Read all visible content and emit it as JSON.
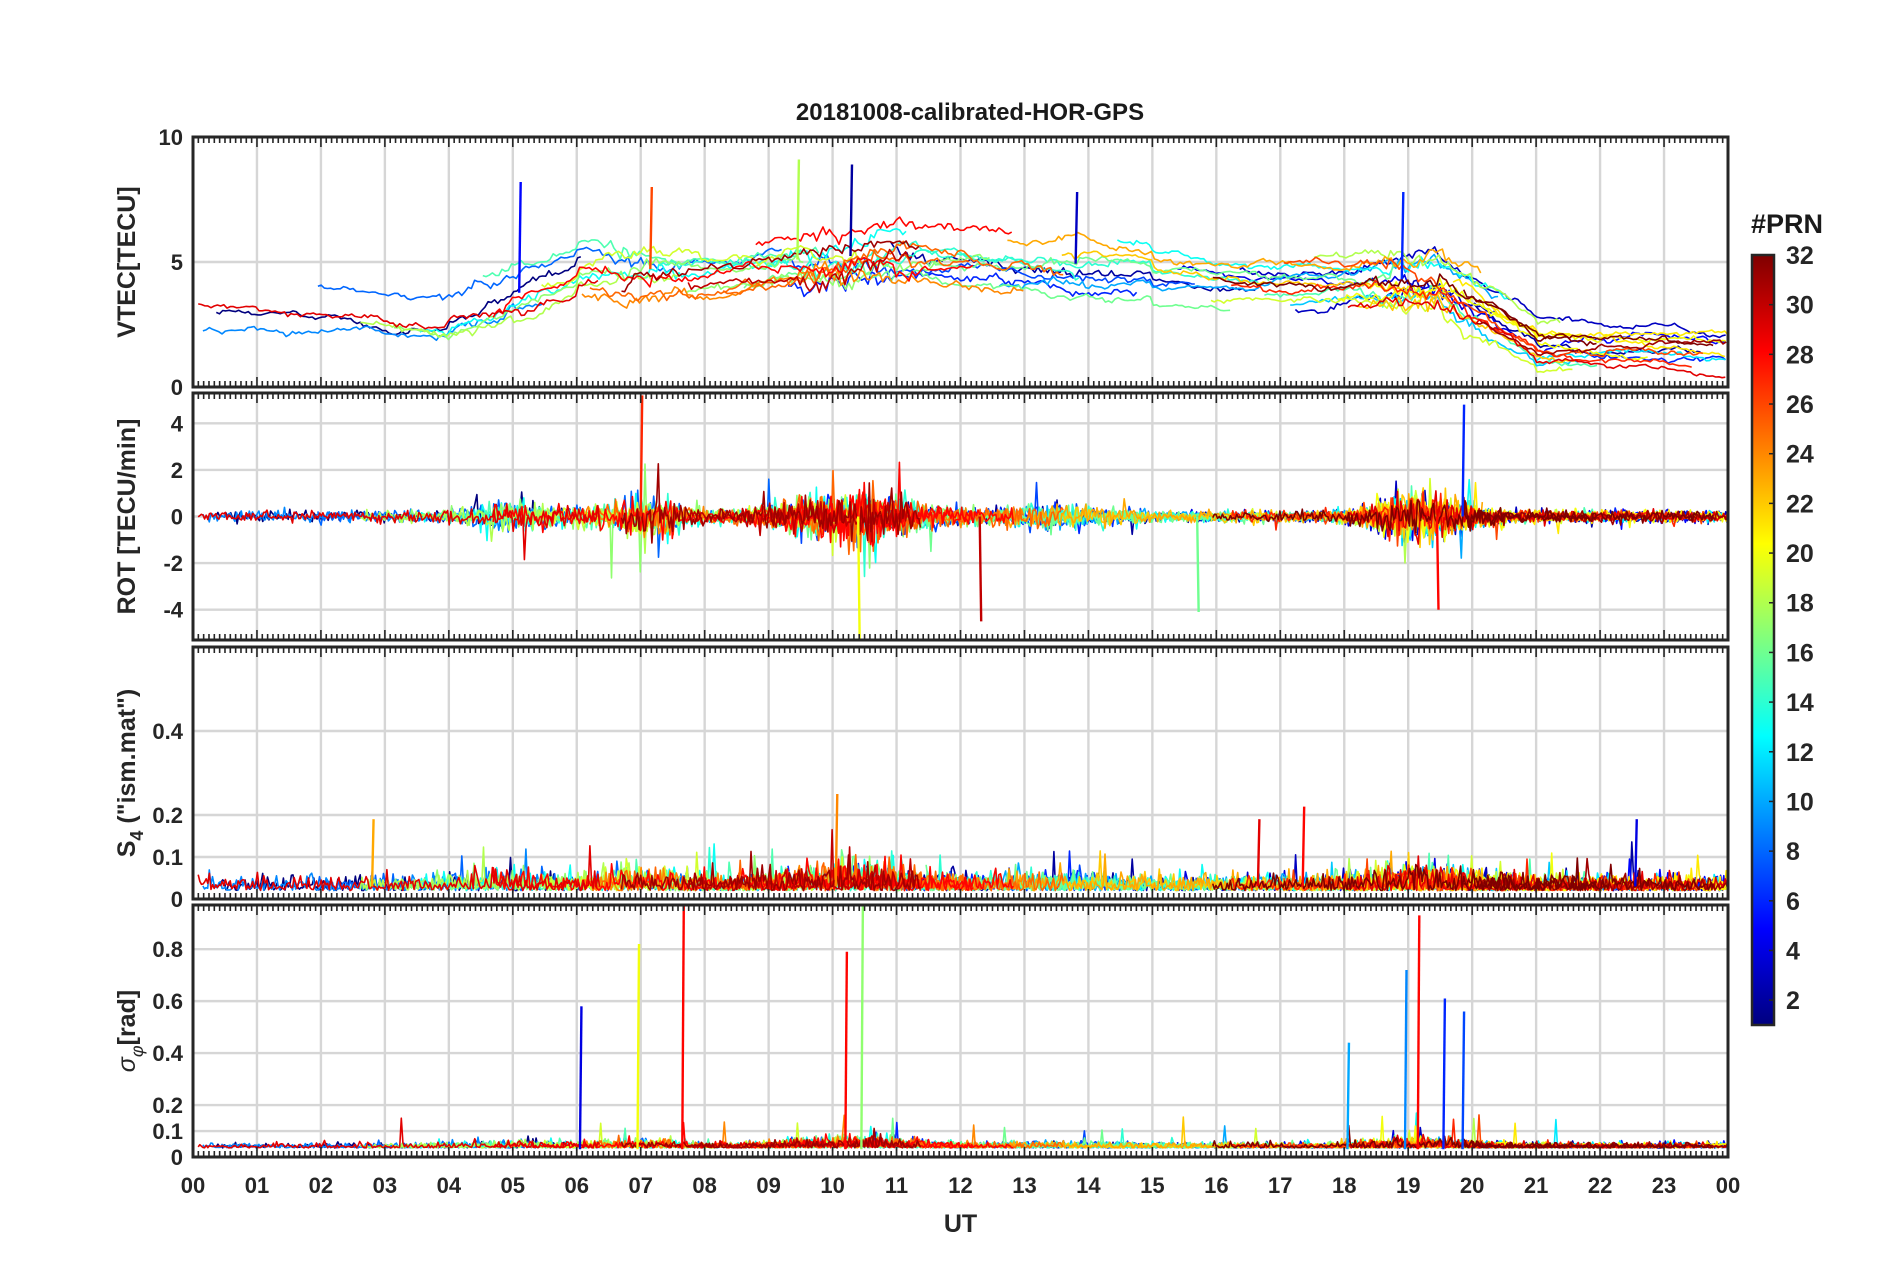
{
  "figure": {
    "title": "20181008-calibrated-HOR-GPS"
  },
  "chart_data": {
    "type": "line",
    "title": "20181008-calibrated-HOR-GPS",
    "xlabel": "UT",
    "x_tick_labels": [
      "00",
      "01",
      "02",
      "03",
      "04",
      "05",
      "06",
      "07",
      "08",
      "09",
      "10",
      "11",
      "12",
      "13",
      "14",
      "15",
      "16",
      "17",
      "18",
      "19",
      "20",
      "21",
      "22",
      "23",
      "00"
    ],
    "xlim_hours": [
      0,
      24
    ],
    "grid": true,
    "colorbar": {
      "label": "#PRN",
      "range": [
        1,
        32
      ],
      "tick_labels": [
        "2",
        "4",
        "6",
        "8",
        "10",
        "12",
        "14",
        "16",
        "18",
        "20",
        "22",
        "24",
        "26",
        "28",
        "30",
        "32"
      ],
      "colormap": "jet",
      "colors": [
        "#00007f",
        "#0000ff",
        "#007fff",
        "#00ffff",
        "#7fff7f",
        "#ffff00",
        "#ff7f00",
        "#ff0000",
        "#7f0000"
      ]
    },
    "panels": [
      {
        "id": "vtec",
        "ylabel": "VTEC[TECU]",
        "ylim": [
          0,
          10
        ],
        "y_tick_labels": [
          "0",
          "5",
          "10"
        ],
        "series_summary": [
          {
            "prn": 2,
            "peak_x": 10.28,
            "peak_y": 8.9
          },
          {
            "prn": 5,
            "peak_x": 5.1,
            "peak_y": 8.2
          },
          {
            "prn": 18,
            "peak_x": 9.45,
            "peak_y": 9.1
          },
          {
            "prn": 6,
            "peak_x": 18.9,
            "peak_y": 7.8
          },
          {
            "prn": 3,
            "peak_x": 13.8,
            "peak_y": 7.8
          },
          {
            "prn": 26,
            "peak_x": 7.15,
            "peak_y": 8.0
          }
        ]
      },
      {
        "id": "rot",
        "ylabel": "ROT [TECU/min]",
        "ylim": [
          -5.3,
          5.3
        ],
        "y_tick_labels": [
          "-4",
          "-2",
          "0",
          "2",
          "4"
        ],
        "series_summary": [
          {
            "prn": 27,
            "peak_x": 7.0,
            "peak_y": 5.2
          },
          {
            "prn": 20,
            "peak_x": 10.4,
            "peak_y": -5.3
          },
          {
            "prn": 6,
            "peak_x": 19.85,
            "peak_y": 4.8
          },
          {
            "prn": 30,
            "peak_x": 12.3,
            "peak_y": -4.5
          },
          {
            "prn": 16,
            "peak_x": 15.7,
            "peak_y": -4.1
          },
          {
            "prn": 28,
            "peak_x": 19.45,
            "peak_y": -4.0
          }
        ]
      },
      {
        "id": "s4",
        "ylabel": "S4 (\"ism.mat\")",
        "ylim": [
          0,
          0.6
        ],
        "y_tick_labels": [
          "0",
          "0.1",
          "0.2",
          "0.4"
        ],
        "series_summary": [
          {
            "prn": 24,
            "peak_x": 10.05,
            "peak_y": 0.25
          },
          {
            "prn": 28,
            "peak_x": 17.35,
            "peak_y": 0.22
          },
          {
            "prn": 23,
            "peak_x": 2.8,
            "peak_y": 0.19
          },
          {
            "prn": 4,
            "peak_x": 22.55,
            "peak_y": 0.19
          },
          {
            "prn": 29,
            "peak_x": 16.65,
            "peak_y": 0.19
          }
        ]
      },
      {
        "id": "sigma_phi",
        "ylabel": "σφ[rad]",
        "ylim": [
          0,
          0.97
        ],
        "y_tick_labels": [
          "0",
          "0.1",
          "0.2",
          "0.4",
          "0.6",
          "0.8"
        ],
        "series_summary": [
          {
            "prn": 28,
            "peak_x": 7.65,
            "peak_y": 0.97
          },
          {
            "prn": 17,
            "peak_x": 10.45,
            "peak_y": 0.97
          },
          {
            "prn": 28,
            "peak_x": 19.15,
            "peak_y": 0.93
          },
          {
            "prn": 20,
            "peak_x": 6.95,
            "peak_y": 0.82
          },
          {
            "prn": 28,
            "peak_x": 10.2,
            "peak_y": 0.79
          },
          {
            "prn": 9,
            "peak_x": 18.95,
            "peak_y": 0.72
          },
          {
            "prn": 6,
            "peak_x": 19.55,
            "peak_y": 0.61
          },
          {
            "prn": 4,
            "peak_x": 6.05,
            "peak_y": 0.58
          },
          {
            "prn": 7,
            "peak_x": 19.85,
            "peak_y": 0.56
          },
          {
            "prn": 10,
            "peak_x": 18.05,
            "peak_y": 0.44
          }
        ]
      }
    ]
  }
}
